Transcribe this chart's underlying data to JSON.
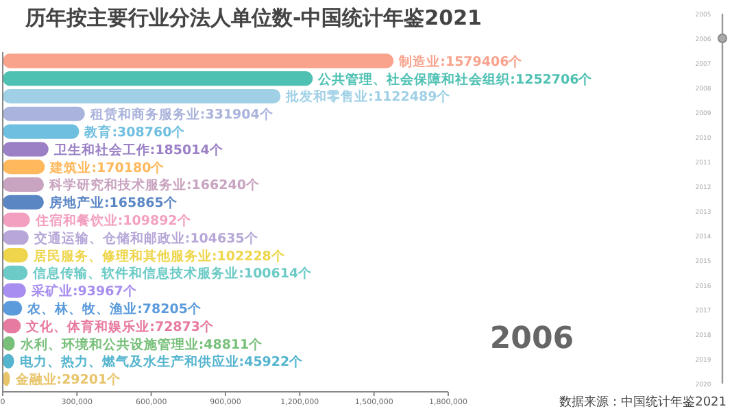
{
  "chart_data": {
    "type": "bar",
    "orientation": "horizontal",
    "title": "历年按主要行业分法人单位数-中国统计年鉴2021",
    "categories": [
      "制造业",
      "公共管理、社会保障和社会组织",
      "批发和零售业",
      "租赁和商务服务业",
      "教育",
      "卫生和社会工作",
      "建筑业",
      "科学研究和技术服务业",
      "房地产业",
      "住宿和餐饮业",
      "交通运输、仓储和邮政业",
      "居民服务、修理和其他服务业",
      "信息传输、软件和信息技术服务业",
      "采矿业",
      "农、林、牧、渔业",
      "文化、体育和娱乐业",
      "水利、环境和公共设施管理业",
      "电力、热力、燃气及水生产和供应业",
      "金融业"
    ],
    "values": [
      1579406,
      1252706,
      1122489,
      331904,
      308760,
      185014,
      170180,
      166240,
      165865,
      109892,
      104635,
      102228,
      100614,
      93967,
      78205,
      72873,
      48811,
      45922,
      29201
    ],
    "value_labels": [
      ":1579406个",
      ":1252706个",
      ":1122489个",
      ":331904个",
      ":308760个",
      ":185014个",
      ":170180个",
      ":166240个",
      ":165865个",
      ":109892个",
      ":104635个",
      ":102228个",
      ":100614个",
      ":93967个",
      ":78205个",
      ":72873个",
      ":48811个",
      ":45922个",
      ":29201个"
    ],
    "colors": [
      "#f9a38d",
      "#4fc1b3",
      "#9fd0e6",
      "#aab3dc",
      "#6fbfe0",
      "#9b80c6",
      "#ffb85c",
      "#c9a4c0",
      "#5a87c4",
      "#f3a0c0",
      "#b6a7d8",
      "#eed54b",
      "#6ccbc6",
      "#a88ef0",
      "#5b9bdc",
      "#e77aa0",
      "#78c07a",
      "#55b5cf",
      "#e8c46a"
    ],
    "xlim": [
      0,
      1800000
    ],
    "xticks": [
      0,
      {
        "value": 300000,
        "label": "300,000"
      },
      {
        "value": 600000,
        "label": "600,000"
      },
      {
        "value": 900000,
        "label": "900,000"
      },
      {
        "value": 1200000,
        "label": "1,200,000"
      },
      {
        "value": 1500000,
        "label": "1,500,000"
      },
      {
        "value": 1800000,
        "label": "1,800,000"
      }
    ],
    "annotations": [
      "2006",
      "数据来源：中国统计年鉴2021",
      "2005",
      "2006",
      "2007",
      "2008",
      "2009",
      "2010",
      "2011",
      "2012",
      "2013",
      "2014",
      "2015",
      "2016",
      "2017",
      "2018",
      "2019",
      "2020"
    ],
    "grid": false
  }
}
